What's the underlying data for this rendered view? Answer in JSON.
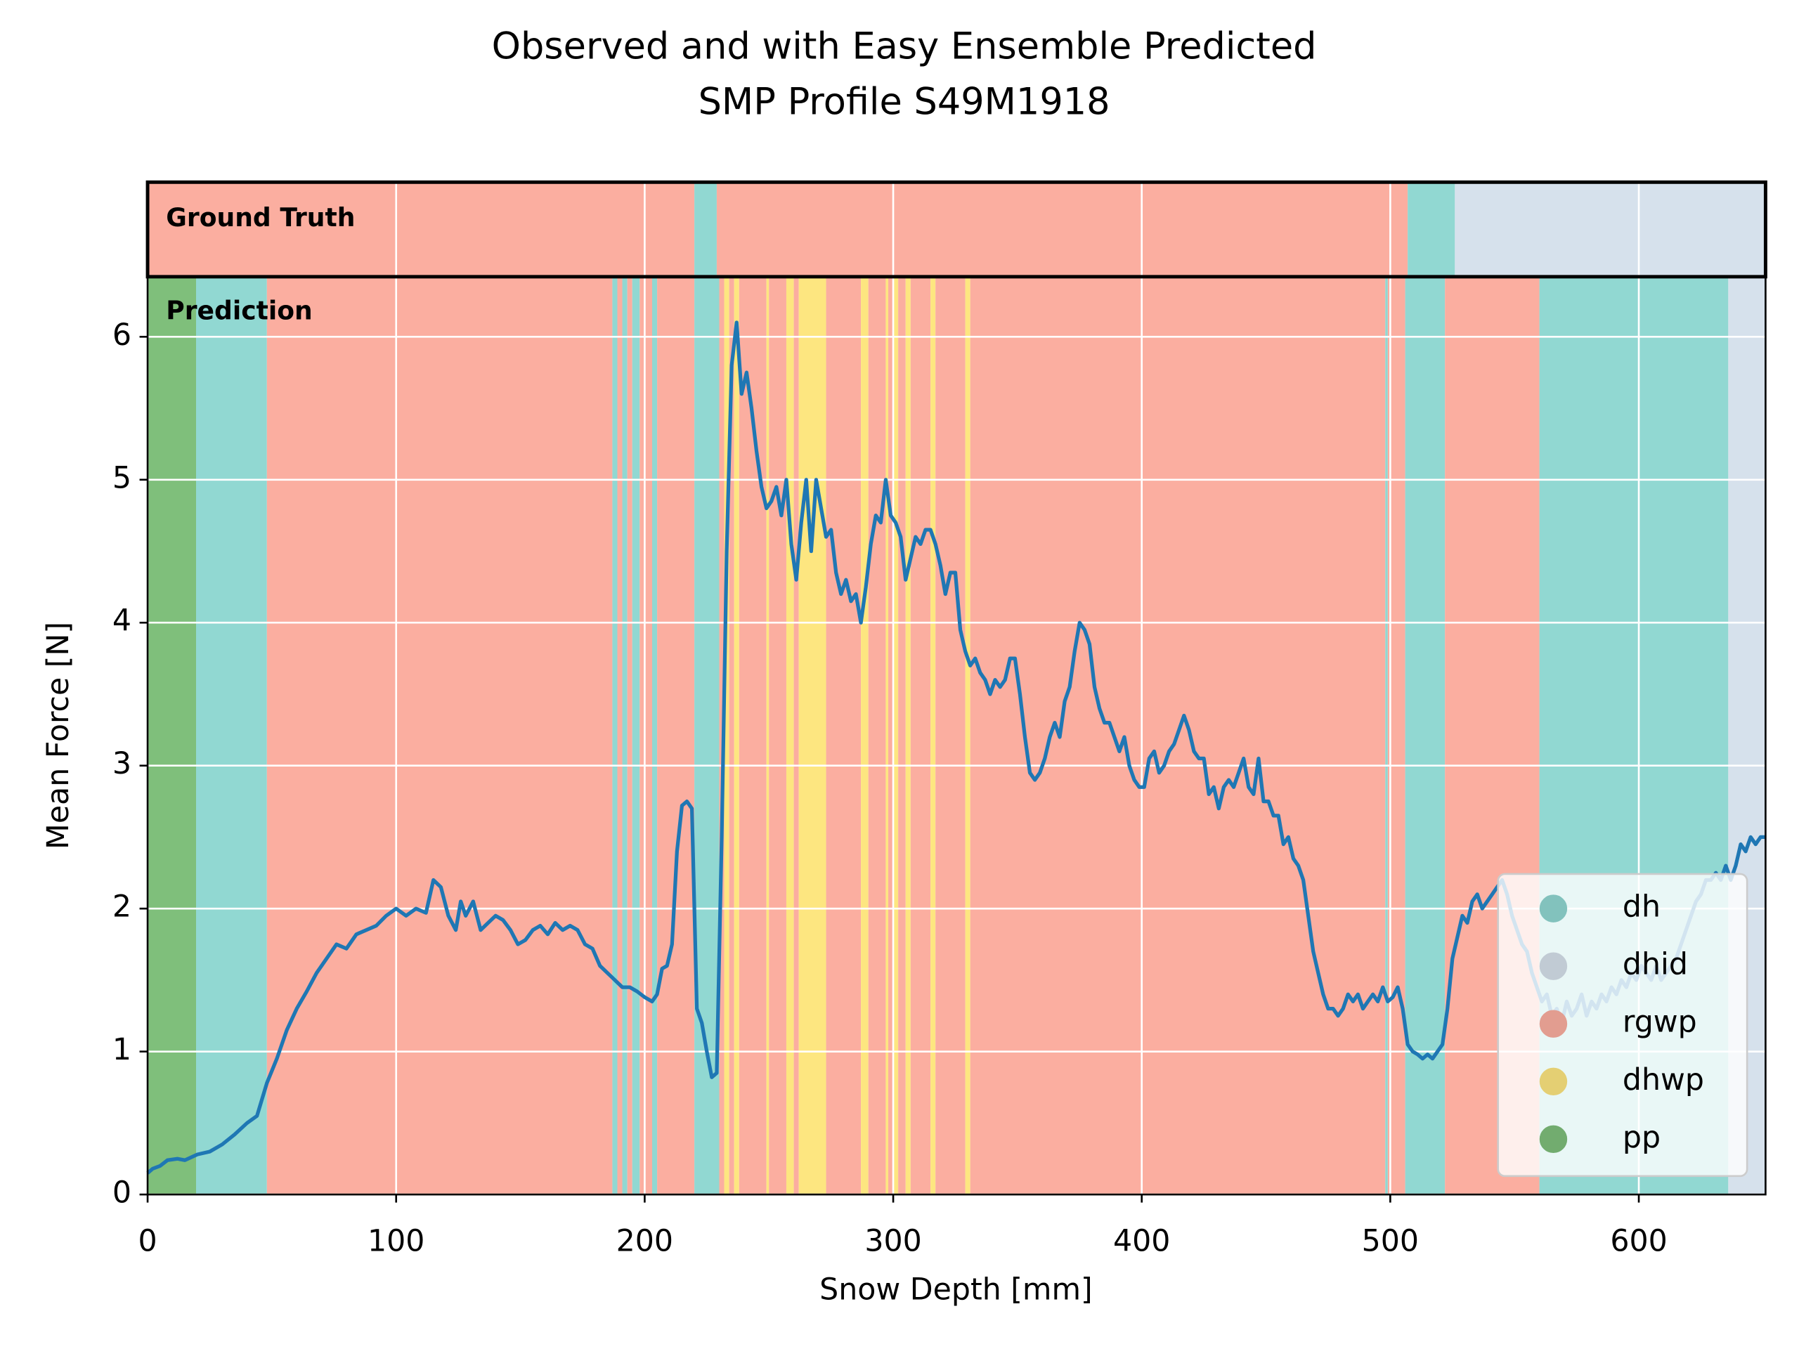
{
  "chart_data": {
    "type": "line",
    "title": "Observed and with Easy Ensemble Predicted",
    "subtitle": "SMP Profile S49M1918",
    "x_label": "Snow Depth [mm]",
    "y_label": "Mean Force [N]",
    "ground_truth_label": "Ground Truth",
    "prediction_label": "Prediction",
    "xlim": [
      0,
      651
    ],
    "ylim": [
      0,
      6.42
    ],
    "xticks": [
      0,
      100,
      200,
      300,
      400,
      500,
      600
    ],
    "yticks": [
      0,
      1,
      2,
      3,
      4,
      5,
      6
    ],
    "grid": true,
    "legend": "lower right",
    "classes": [
      {
        "name": "dh",
        "color": "#91d8d2"
      },
      {
        "name": "dhid",
        "color": "#d6e1ec"
      },
      {
        "name": "rgwp",
        "color": "#fbaea0"
      },
      {
        "name": "dhwp",
        "color": "#fde680"
      },
      {
        "name": "pp",
        "color": "#7fbf7b"
      }
    ],
    "ground_truth": [
      {
        "start": 0,
        "end": 220,
        "class": "rgwp"
      },
      {
        "start": 220,
        "end": 229,
        "class": "dh"
      },
      {
        "start": 229,
        "end": 507,
        "class": "rgwp"
      },
      {
        "start": 507,
        "end": 526,
        "class": "dh"
      },
      {
        "start": 526,
        "end": 651,
        "class": "dhid"
      }
    ],
    "prediction": [
      {
        "start": 0,
        "end": 19.5,
        "class": "pp"
      },
      {
        "start": 19.5,
        "end": 48,
        "class": "dh"
      },
      {
        "start": 48,
        "end": 187,
        "class": "rgwp"
      },
      {
        "start": 187,
        "end": 189,
        "class": "dh"
      },
      {
        "start": 189,
        "end": 191,
        "class": "rgwp"
      },
      {
        "start": 191,
        "end": 193,
        "class": "dh"
      },
      {
        "start": 193,
        "end": 195,
        "class": "rgwp"
      },
      {
        "start": 195,
        "end": 198,
        "class": "dh"
      },
      {
        "start": 198,
        "end": 203,
        "class": "rgwp"
      },
      {
        "start": 203,
        "end": 205,
        "class": "dh"
      },
      {
        "start": 205,
        "end": 220,
        "class": "rgwp"
      },
      {
        "start": 220,
        "end": 230,
        "class": "dh"
      },
      {
        "start": 230,
        "end": 232,
        "class": "rgwp"
      },
      {
        "start": 232,
        "end": 234,
        "class": "dhwp"
      },
      {
        "start": 234,
        "end": 236,
        "class": "rgwp"
      },
      {
        "start": 236,
        "end": 238,
        "class": "dhwp"
      },
      {
        "start": 238,
        "end": 249,
        "class": "rgwp"
      },
      {
        "start": 249,
        "end": 250,
        "class": "dhwp"
      },
      {
        "start": 250,
        "end": 257,
        "class": "rgwp"
      },
      {
        "start": 257,
        "end": 260,
        "class": "dhwp"
      },
      {
        "start": 260,
        "end": 262,
        "class": "rgwp"
      },
      {
        "start": 262,
        "end": 273,
        "class": "dhwp"
      },
      {
        "start": 273,
        "end": 287,
        "class": "rgwp"
      },
      {
        "start": 287,
        "end": 290,
        "class": "dhwp"
      },
      {
        "start": 290,
        "end": 297,
        "class": "rgwp"
      },
      {
        "start": 297,
        "end": 298,
        "class": "dhwp"
      },
      {
        "start": 298,
        "end": 300,
        "class": "rgwp"
      },
      {
        "start": 300,
        "end": 302,
        "class": "dhwp"
      },
      {
        "start": 302,
        "end": 305,
        "class": "rgwp"
      },
      {
        "start": 305,
        "end": 307,
        "class": "dhwp"
      },
      {
        "start": 307,
        "end": 315,
        "class": "rgwp"
      },
      {
        "start": 315,
        "end": 317,
        "class": "dhwp"
      },
      {
        "start": 317,
        "end": 329,
        "class": "rgwp"
      },
      {
        "start": 329,
        "end": 331,
        "class": "dhwp"
      },
      {
        "start": 331,
        "end": 498,
        "class": "rgwp"
      },
      {
        "start": 498,
        "end": 499,
        "class": "dh"
      },
      {
        "start": 499,
        "end": 506,
        "class": "rgwp"
      },
      {
        "start": 506,
        "end": 522,
        "class": "dh"
      },
      {
        "start": 522,
        "end": 560,
        "class": "rgwp"
      },
      {
        "start": 560,
        "end": 636,
        "class": "dh"
      },
      {
        "start": 636,
        "end": 651,
        "class": "dhid"
      }
    ],
    "x": [
      0,
      2,
      5,
      8,
      12,
      15,
      20,
      25,
      30,
      35,
      40,
      44,
      48,
      52,
      56,
      60,
      64,
      68,
      72,
      76,
      80,
      84,
      88,
      92,
      96,
      100,
      104,
      108,
      112,
      115,
      118,
      121,
      124,
      126,
      128,
      131,
      134,
      137,
      140,
      143,
      146,
      149,
      152,
      155,
      158,
      161,
      164,
      167,
      170,
      173,
      176,
      179,
      182,
      185,
      188,
      191,
      194,
      197,
      200,
      203,
      205,
      207,
      209,
      211,
      213,
      215,
      217,
      219,
      221,
      223,
      225,
      227,
      229,
      231,
      233,
      235,
      237,
      239,
      241,
      243,
      245,
      247,
      249,
      251,
      253,
      255,
      257,
      259,
      261,
      263,
      265,
      267,
      269,
      271,
      273,
      275,
      277,
      279,
      281,
      283,
      285,
      287,
      289,
      291,
      293,
      295,
      297,
      299,
      301,
      303,
      305,
      307,
      309,
      311,
      313,
      315,
      317,
      319,
      321,
      323,
      325,
      327,
      329,
      331,
      333,
      335,
      337,
      339,
      341,
      343,
      345,
      347,
      349,
      351,
      353,
      355,
      357,
      359,
      361,
      363,
      365,
      367,
      369,
      371,
      373,
      375,
      377,
      379,
      381,
      383,
      385,
      387,
      389,
      391,
      393,
      395,
      397,
      399,
      401,
      403,
      405,
      407,
      409,
      411,
      413,
      415,
      417,
      419,
      421,
      423,
      425,
      427,
      429,
      431,
      433,
      435,
      437,
      439,
      441,
      443,
      445,
      447,
      449,
      451,
      453,
      455,
      457,
      459,
      461,
      463,
      465,
      467,
      469,
      471,
      473,
      475,
      477,
      479,
      481,
      483,
      485,
      487,
      489,
      491,
      493,
      495,
      497,
      499,
      501,
      503,
      505,
      507,
      509,
      511,
      513,
      515,
      517,
      519,
      521,
      523,
      525,
      527,
      529,
      531,
      533,
      535,
      537,
      539,
      541,
      543,
      545,
      547,
      549,
      551,
      553,
      555,
      557,
      559,
      561,
      563,
      565,
      567,
      569,
      571,
      573,
      575,
      577,
      579,
      581,
      583,
      585,
      587,
      589,
      591,
      593,
      595,
      597,
      599,
      601,
      603,
      605,
      607,
      609,
      611,
      613,
      615,
      617,
      619,
      621,
      623,
      625,
      627,
      629,
      631,
      633,
      635,
      637,
      639,
      641,
      643,
      645,
      647,
      649,
      651
    ],
    "series": [
      {
        "color": "#1f77b4",
        "values": [
          0.15,
          0.18,
          0.2,
          0.24,
          0.25,
          0.24,
          0.28,
          0.3,
          0.35,
          0.42,
          0.5,
          0.55,
          0.78,
          0.95,
          1.15,
          1.3,
          1.42,
          1.55,
          1.65,
          1.75,
          1.72,
          1.82,
          1.85,
          1.88,
          1.95,
          2.0,
          1.95,
          2.0,
          1.97,
          2.2,
          2.15,
          1.95,
          1.85,
          2.05,
          1.95,
          2.05,
          1.85,
          1.9,
          1.95,
          1.92,
          1.85,
          1.75,
          1.78,
          1.85,
          1.88,
          1.82,
          1.9,
          1.85,
          1.88,
          1.85,
          1.75,
          1.72,
          1.6,
          1.55,
          1.5,
          1.45,
          1.45,
          1.42,
          1.38,
          1.35,
          1.4,
          1.58,
          1.6,
          1.75,
          2.4,
          2.72,
          2.75,
          2.7,
          1.3,
          1.2,
          1.0,
          0.82,
          0.85,
          2.5,
          4.5,
          5.8,
          6.1,
          5.6,
          5.75,
          5.5,
          5.2,
          4.95,
          4.8,
          4.85,
          4.95,
          4.75,
          5.0,
          4.55,
          4.3,
          4.7,
          5.0,
          4.5,
          5.0,
          4.8,
          4.6,
          4.65,
          4.35,
          4.2,
          4.3,
          4.15,
          4.2,
          4.0,
          4.25,
          4.55,
          4.75,
          4.7,
          5.0,
          4.75,
          4.7,
          4.6,
          4.3,
          4.45,
          4.6,
          4.55,
          4.65,
          4.65,
          4.55,
          4.4,
          4.2,
          4.35,
          4.35,
          3.95,
          3.8,
          3.7,
          3.75,
          3.65,
          3.6,
          3.5,
          3.6,
          3.55,
          3.6,
          3.75,
          3.75,
          3.5,
          3.2,
          2.95,
          2.9,
          2.95,
          3.05,
          3.2,
          3.3,
          3.2,
          3.45,
          3.55,
          3.8,
          4.0,
          3.95,
          3.85,
          3.55,
          3.4,
          3.3,
          3.3,
          3.2,
          3.1,
          3.2,
          3.0,
          2.9,
          2.85,
          2.85,
          3.05,
          3.1,
          2.95,
          3.0,
          3.1,
          3.15,
          3.25,
          3.35,
          3.25,
          3.1,
          3.05,
          3.05,
          2.8,
          2.85,
          2.7,
          2.85,
          2.9,
          2.85,
          2.95,
          3.05,
          2.85,
          2.8,
          3.05,
          2.75,
          2.75,
          2.65,
          2.65,
          2.45,
          2.5,
          2.35,
          2.3,
          2.2,
          1.95,
          1.7,
          1.55,
          1.4,
          1.3,
          1.3,
          1.25,
          1.3,
          1.4,
          1.35,
          1.4,
          1.3,
          1.35,
          1.4,
          1.35,
          1.45,
          1.35,
          1.38,
          1.45,
          1.3,
          1.05,
          1.0,
          0.98,
          0.95,
          0.98,
          0.95,
          1.0,
          1.05,
          1.3,
          1.65,
          1.8,
          1.95,
          1.9,
          2.05,
          2.1,
          2.0,
          2.05,
          2.1,
          2.15,
          2.2,
          2.1,
          1.95,
          1.85,
          1.75,
          1.7,
          1.55,
          1.45,
          1.35,
          1.4,
          1.25,
          1.3,
          1.2,
          1.35,
          1.25,
          1.3,
          1.4,
          1.25,
          1.35,
          1.3,
          1.4,
          1.35,
          1.45,
          1.4,
          1.5,
          1.45,
          1.55,
          1.5,
          1.6,
          1.55,
          1.5,
          1.6,
          1.5,
          1.55,
          1.6,
          1.65,
          1.75,
          1.85,
          1.95,
          2.05,
          2.1,
          2.2,
          2.2,
          2.25,
          2.2,
          2.3,
          2.2,
          2.3,
          2.45,
          2.4,
          2.5,
          2.45,
          2.5,
          2.5
        ]
      }
    ]
  }
}
